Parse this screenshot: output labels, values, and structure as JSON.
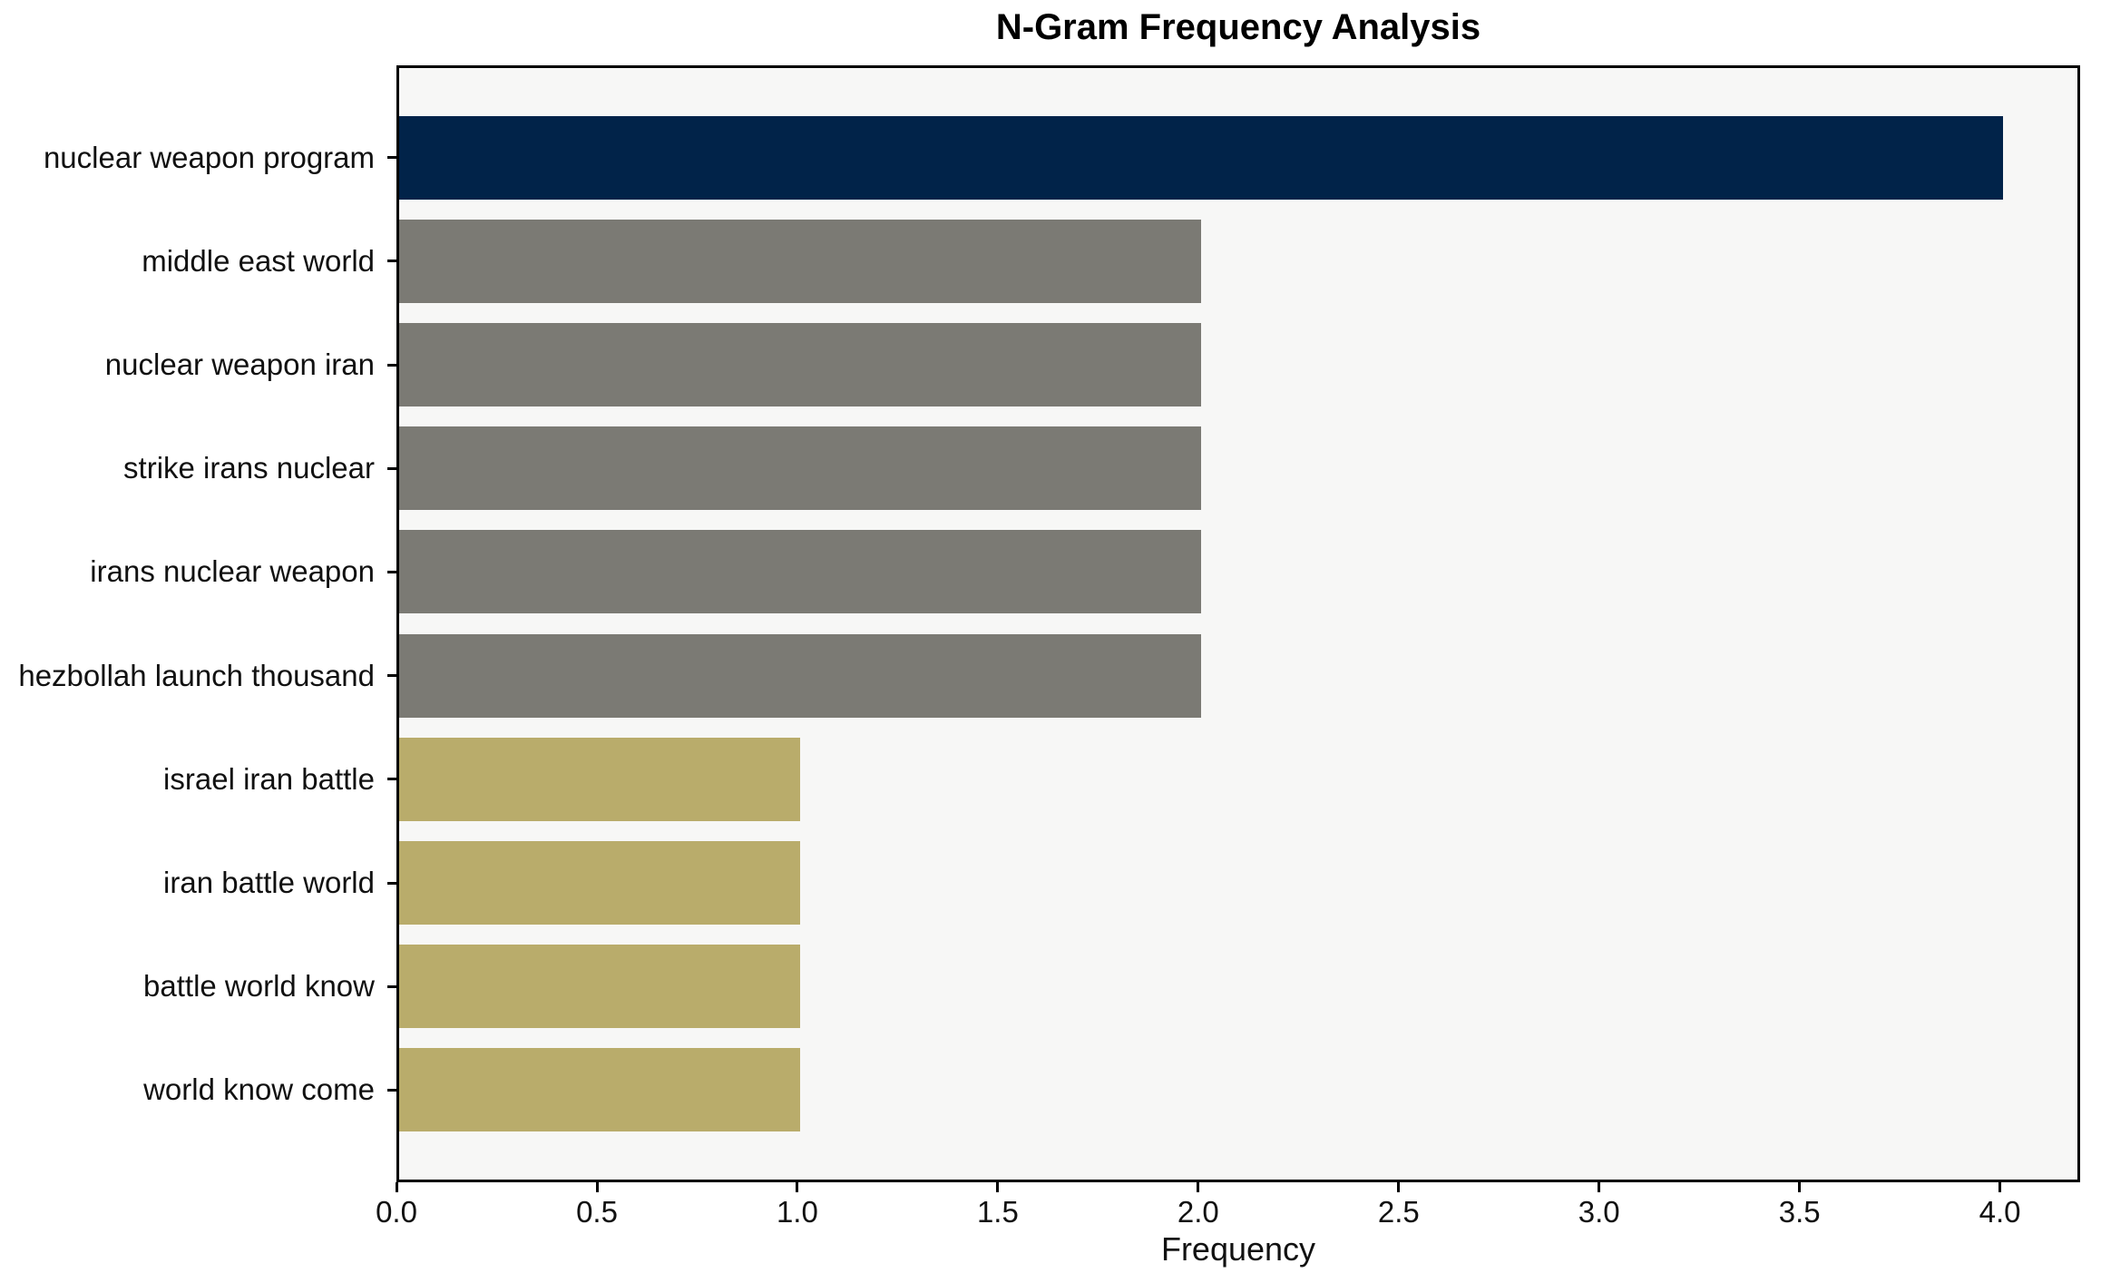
{
  "chart_data": {
    "type": "bar",
    "orientation": "horizontal",
    "title": "N-Gram Frequency Analysis",
    "xlabel": "Frequency",
    "ylabel": "",
    "categories": [
      "nuclear weapon program",
      "middle east world",
      "nuclear weapon iran",
      "strike irans nuclear",
      "irans nuclear weapon",
      "hezbollah launch thousand",
      "israel iran battle",
      "iran battle world",
      "battle world know",
      "world know come"
    ],
    "values": [
      4,
      2,
      2,
      2,
      2,
      2,
      1,
      1,
      1,
      1
    ],
    "bar_colors": [
      "#012349",
      "#7b7a74",
      "#7b7a74",
      "#7b7a74",
      "#7b7a74",
      "#7b7a74",
      "#b9ac6b",
      "#b9ac6b",
      "#b9ac6b",
      "#b9ac6b"
    ],
    "palette": {
      "highlight_navy": "#012349",
      "mid_gray": "#7b7a74",
      "khaki": "#b9ac6b",
      "plot_background": "#f7f7f6",
      "figure_background": "#ffffff",
      "axis_color": "#000000",
      "text_color": "#111111"
    },
    "xlim": [
      0,
      4.2
    ],
    "x_ticks": [
      0.0,
      0.5,
      1.0,
      1.5,
      2.0,
      2.5,
      3.0,
      3.5,
      4.0
    ],
    "x_tick_labels": [
      "0.0",
      "0.5",
      "1.0",
      "1.5",
      "2.0",
      "2.5",
      "3.0",
      "3.5",
      "4.0"
    ],
    "grid": false,
    "legend": null
  }
}
